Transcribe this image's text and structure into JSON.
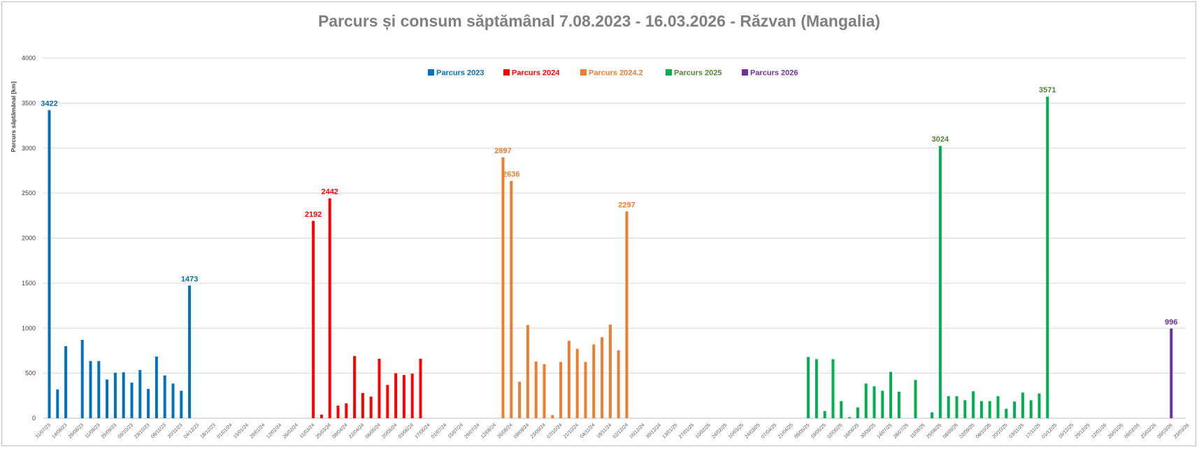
{
  "chart_data": {
    "type": "bar",
    "title": "Parcurs și consum săptămânal 7.08.2023 - 16.03.2026 - Răzvan (Mangalia)",
    "ylabel": "Parcurs săptămânal [km]",
    "ylim": [
      0,
      4000
    ],
    "yticks": [
      0,
      500,
      1000,
      1500,
      2000,
      2500,
      3000,
      3500,
      4000
    ],
    "grid": true,
    "legend_position": "top-center",
    "x_tick_labels": [
      "31/07/23",
      "14/08/23",
      "28/08/23",
      "11/09/23",
      "25/09/23",
      "09/10/23",
      "23/10/23",
      "06/11/23",
      "20/11/23",
      "04/12/23",
      "18/12/23",
      "01/01/24",
      "15/01/24",
      "29/01/24",
      "12/02/24",
      "26/02/24",
      "11/03/24",
      "25/03/24",
      "08/04/24",
      "22/04/24",
      "06/05/24",
      "20/05/24",
      "03/06/24",
      "17/06/24",
      "01/07/24",
      "15/07/24",
      "29/07/24",
      "12/08/24",
      "26/08/24",
      "09/09/24",
      "23/09/24",
      "07/10/24",
      "21/10/24",
      "04/11/24",
      "18/11/24",
      "02/12/24",
      "16/12/24",
      "30/12/24",
      "13/01/25",
      "27/01/25",
      "10/02/25",
      "24/02/25",
      "10/03/25",
      "24/03/25",
      "07/04/25",
      "21/04/25",
      "05/05/25",
      "19/05/25",
      "02/06/25",
      "16/06/25",
      "30/06/25",
      "14/07/25",
      "28/07/25",
      "11/08/25",
      "25/08/25",
      "08/09/25",
      "22/09/25",
      "06/10/25",
      "20/10/25",
      "03/11/25",
      "17/11/25",
      "01/12/25",
      "15/12/25",
      "29/12/25",
      "12/01/26",
      "26/01/26",
      "09/02/26",
      "23/02/26",
      "09/03/26",
      "23/03/26"
    ],
    "series": [
      {
        "name": "Parcurs 2023",
        "color": "#0070c0",
        "label_color": "#0070c0",
        "start_week": 0,
        "values": [
          3422,
          320,
          800,
          0,
          870,
          635,
          635,
          430,
          505,
          510,
          395,
          535,
          325,
          685,
          475,
          385,
          305,
          1473
        ],
        "labels": [
          {
            "index": 0,
            "text": "3422"
          },
          {
            "index": 17,
            "text": "1473"
          }
        ]
      },
      {
        "name": "Parcurs 2024",
        "color": "#ff0000",
        "label_color": "#ff0000",
        "start_week": 32,
        "values": [
          2192,
          40,
          2442,
          140,
          165,
          690,
          280,
          240,
          660,
          370,
          500,
          480,
          495,
          660
        ],
        "labels": [
          {
            "index": 0,
            "text": "2192"
          },
          {
            "index": 2,
            "text": "2442"
          }
        ]
      },
      {
        "name": "Parcurs 2024.2",
        "color": "#ed7d31",
        "label_color": "#ed7d31",
        "start_week": 55,
        "values": [
          2897,
          2636,
          405,
          1035,
          630,
          600,
          35,
          625,
          860,
          770,
          625,
          820,
          900,
          1040,
          755,
          2297
        ],
        "labels": [
          {
            "index": 0,
            "text": "2897"
          },
          {
            "index": 1,
            "text": "2636"
          },
          {
            "index": 15,
            "text": "2297"
          }
        ]
      },
      {
        "name": "Parcurs 2025",
        "color": "#00b050",
        "label_color": "#548235",
        "start_week": 92,
        "values": [
          680,
          655,
          80,
          655,
          190,
          12,
          120,
          385,
          355,
          305,
          515,
          295,
          0,
          425,
          0,
          65,
          3024,
          245,
          245,
          200,
          300,
          190,
          190,
          245,
          105,
          185,
          285,
          200,
          275,
          3571
        ],
        "labels": [
          {
            "index": 16,
            "text": "3024"
          },
          {
            "index": 29,
            "text": "3571"
          }
        ]
      },
      {
        "name": "Parcurs 2026",
        "color": "#7030a0",
        "label_color": "#7030a0",
        "start_week": 136,
        "values": [
          996
        ],
        "labels": [
          {
            "index": 0,
            "text": "996"
          }
        ]
      }
    ]
  }
}
